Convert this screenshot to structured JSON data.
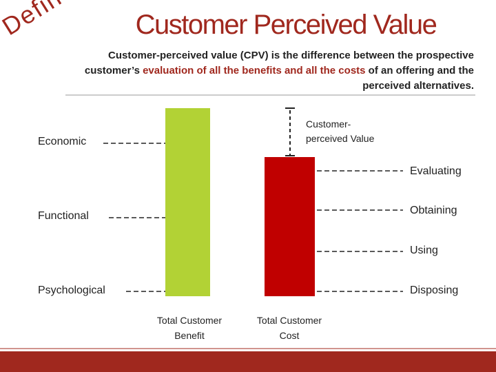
{
  "header": {
    "tag": "Defined",
    "title": "Customer Perceived Value",
    "description": [
      "Customer-perceived value (CPV) is the difference between the prospective customer’s ",
      "evaluation of all the benefits and all the costs",
      " of an offering and the perceived alternatives."
    ]
  },
  "benefit_bar": {
    "label": "Total Customer Benefit",
    "items": [
      "Economic",
      "Functional",
      "Psychological"
    ]
  },
  "cost_bar": {
    "label": "Total Customer Cost",
    "items": [
      "Evaluating",
      "Obtaining",
      "Using",
      "Disposing"
    ]
  },
  "gap_label": "Customer-perceived Value"
}
